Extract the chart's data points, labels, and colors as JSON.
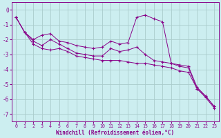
{
  "xlabel": "Windchill (Refroidissement éolien,°C)",
  "background_color": "#cceef0",
  "line_color": "#880088",
  "grid_color": "#aacccc",
  "xlim": [
    -0.5,
    23.5
  ],
  "ylim": [
    -7.5,
    0.5
  ],
  "yticks": [
    0,
    -1,
    -2,
    -3,
    -4,
    -5,
    -6,
    -7
  ],
  "xticks": [
    0,
    1,
    2,
    3,
    4,
    5,
    6,
    7,
    8,
    9,
    10,
    11,
    12,
    13,
    14,
    15,
    16,
    17,
    18,
    19,
    20,
    21,
    22,
    23
  ],
  "series": [
    {
      "x": [
        0,
        1,
        2,
        3,
        4,
        5,
        6,
        7,
        8,
        9,
        10,
        11,
        12,
        13,
        14,
        15,
        16,
        17,
        18,
        19,
        20,
        21,
        22,
        23
      ],
      "y": [
        -0.5,
        -1.5,
        -2.0,
        -1.7,
        -1.6,
        -2.1,
        -2.2,
        -2.4,
        -2.5,
        -2.6,
        -2.5,
        -2.1,
        -2.3,
        -2.2,
        -0.5,
        -0.35,
        -0.6,
        -0.8,
        -3.6,
        -3.7,
        -3.8,
        -5.2,
        -5.8,
        -6.5
      ]
    },
    {
      "x": [
        0,
        1,
        2,
        3,
        4,
        5,
        6,
        7,
        8,
        9,
        10,
        11,
        12,
        13,
        14,
        15,
        16,
        17,
        18,
        19,
        20,
        21,
        22,
        23
      ],
      "y": [
        -0.5,
        -1.5,
        -2.1,
        -2.4,
        -2.0,
        -2.3,
        -2.6,
        -2.9,
        -3.0,
        -3.1,
        -3.1,
        -2.6,
        -2.8,
        -2.7,
        -2.5,
        -3.0,
        -3.4,
        -3.5,
        -3.6,
        -3.8,
        -3.9,
        -5.3,
        -5.8,
        -6.5
      ]
    },
    {
      "x": [
        0,
        1,
        2,
        3,
        4,
        5,
        6,
        7,
        8,
        9,
        10,
        11,
        12,
        13,
        14,
        15,
        16,
        17,
        18,
        19,
        20,
        21,
        22,
        23
      ],
      "y": [
        -0.5,
        -1.5,
        -2.3,
        -2.6,
        -2.7,
        -2.6,
        -2.8,
        -3.1,
        -3.2,
        -3.3,
        -3.4,
        -3.4,
        -3.4,
        -3.5,
        -3.6,
        -3.6,
        -3.7,
        -3.8,
        -3.9,
        -4.1,
        -4.2,
        -5.3,
        -5.9,
        -6.6
      ]
    }
  ]
}
